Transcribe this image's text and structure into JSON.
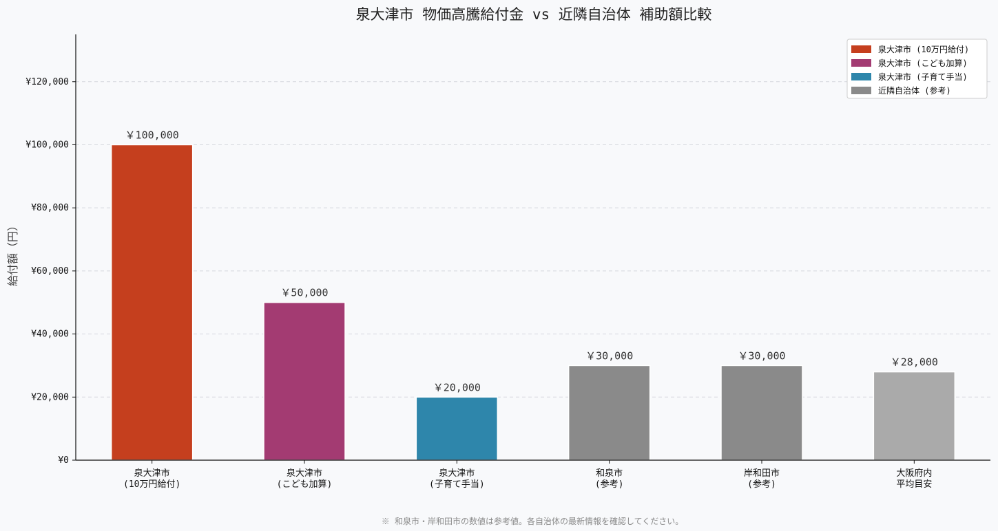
{
  "chart_data": {
    "type": "bar",
    "title": "泉大津市 物価高騰給付金 vs 近隣自治体 補助額比較",
    "ylabel": "給付額（円）",
    "xlabel": "",
    "ylim": [
      0,
      135000
    ],
    "yticks": [
      0,
      20000,
      40000,
      60000,
      80000,
      100000,
      120000
    ],
    "ytick_labels": [
      "¥0",
      "¥20,000",
      "¥40,000",
      "¥60,000",
      "¥80,000",
      "¥100,000",
      "¥120,000"
    ],
    "grid": true,
    "legend_position": "top-right",
    "categories": [
      [
        "泉大津市",
        "(10万円給付)"
      ],
      [
        "泉大津市",
        "(こども加算)"
      ],
      [
        "泉大津市",
        "(子育て手当)"
      ],
      [
        "和泉市",
        "(参考)"
      ],
      [
        "岸和田市",
        "(参考)"
      ],
      [
        "大阪府内",
        "平均目安"
      ]
    ],
    "values": [
      100000,
      50000,
      20000,
      30000,
      30000,
      28000
    ],
    "value_labels": [
      "￥100,000",
      "￥50,000",
      "￥20,000",
      "￥30,000",
      "￥30,000",
      "￥28,000"
    ],
    "colors": [
      "#c53f1e",
      "#a33b72",
      "#2e86ab",
      "#8a8a8a",
      "#8a8a8a",
      "#aaaaaa"
    ],
    "legend": [
      {
        "label": "泉大津市 (10万円給付)",
        "color": "#c53f1e"
      },
      {
        "label": "泉大津市 (こども加算)",
        "color": "#a33b72"
      },
      {
        "label": "泉大津市 (子育て手当)",
        "color": "#2e86ab"
      },
      {
        "label": "近隣自治体 (参考)",
        "color": "#8a8a8a"
      }
    ],
    "footnote": "※ 和泉市・岸和田市の数値は参考値。各自治体の最新情報を確認してください。"
  }
}
